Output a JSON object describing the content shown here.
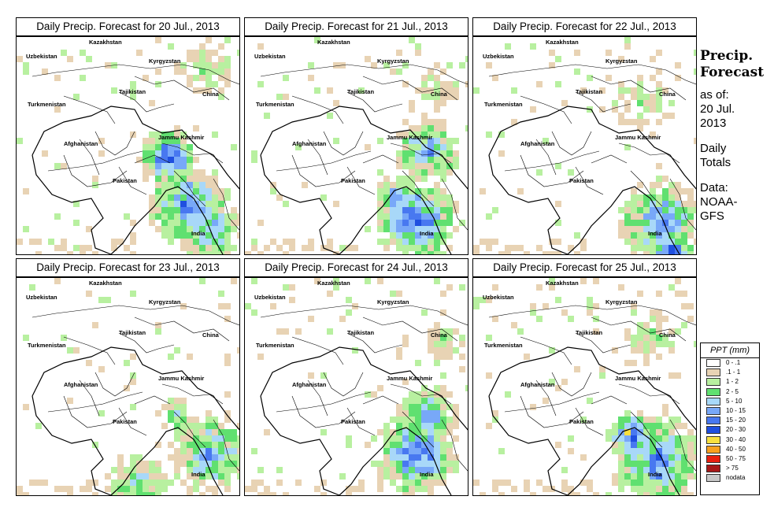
{
  "panels": [
    {
      "title": "Daily Precip. Forecast for  20 Jul., 2013",
      "seed": 11
    },
    {
      "title": "Daily Precip. Forecast for  21 Jul., 2013",
      "seed": 23
    },
    {
      "title": "Daily Precip. Forecast for  22 Jul., 2013",
      "seed": 37
    },
    {
      "title": "Daily Precip. Forecast for  23 Jul., 2013",
      "seed": 41
    },
    {
      "title": "Daily Precip. Forecast for  24 Jul., 2013",
      "seed": 53
    },
    {
      "title": "Daily Precip. Forecast for  25 Jul., 2013",
      "seed": 67
    }
  ],
  "map_labels": {
    "kazakhstan": "Kazakhstan",
    "uzbekistan": "Uzbekistan",
    "kyrgyzstan": "Kyrgyzstan",
    "tajikistan": "Tajikistan",
    "turkmenistan": "Turkmenistan",
    "china": "China",
    "afghanistan": "Afghanistan",
    "jammu_kashmir": "Jammu Kashmir",
    "pakistan": "Pakistan",
    "india": "India"
  },
  "sidebar": {
    "title_line1": "Precip.",
    "title_line2": "Forecast",
    "asof_line1": "as of:",
    "asof_line2": "20 Jul.",
    "asof_line3": "2013",
    "totals_line1": "Daily",
    "totals_line2": "Totals",
    "data_line1": "Data:",
    "data_line2": "NOAA-",
    "data_line3": "GFS"
  },
  "legend": {
    "title": "PPT (mm)",
    "items": [
      {
        "label": "0 - .1",
        "color": "#ffffff"
      },
      {
        "label": ".1 - 1",
        "color": "#e8d3b4"
      },
      {
        "label": "1 - 2",
        "color": "#b8f0a0"
      },
      {
        "label": "2 - 5",
        "color": "#60e070"
      },
      {
        "label": "5 - 10",
        "color": "#a8d8f8"
      },
      {
        "label": "10 - 15",
        "color": "#78a8f8"
      },
      {
        "label": "15 - 20",
        "color": "#4878f0"
      },
      {
        "label": "20 - 30",
        "color": "#1f4fe0"
      },
      {
        "label": "30 - 40",
        "color": "#f8e040"
      },
      {
        "label": "40 - 50",
        "color": "#f8a020"
      },
      {
        "label": "50 - 75",
        "color": "#e82010"
      },
      {
        "label": "> 75",
        "color": "#a81818"
      },
      {
        "label": "nodata",
        "color": "#c8c8c8"
      }
    ]
  }
}
